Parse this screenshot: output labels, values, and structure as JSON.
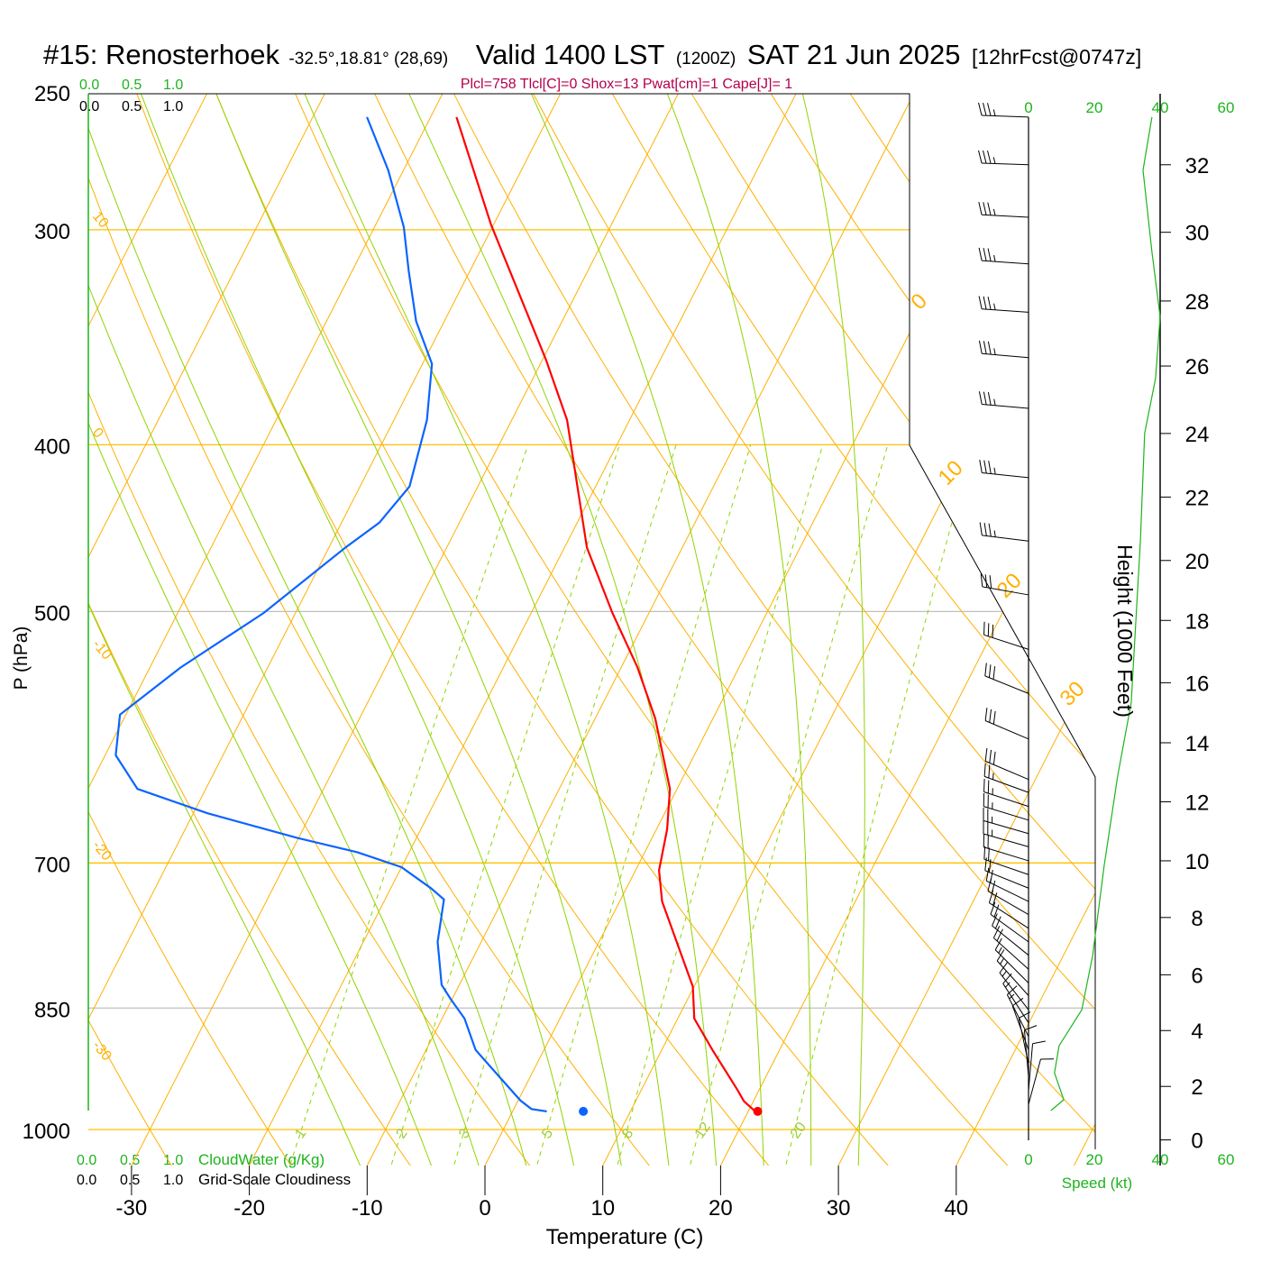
{
  "title": {
    "station": "#15: Renosterhoek",
    "coords": "-32.5°,18.81° (28,69)",
    "valid": "Valid 1400 LST",
    "utc": "(1200Z)",
    "date": "SAT 21 Jun 2025",
    "forecast": "[12hrFcst@0747z]"
  },
  "indices": "Plcl=758 Tlcl[C]=0 Shox=13 Pwat[cm]=1 Cape[J]= 1",
  "cloud_axes": {
    "ticks": [
      "0.0",
      "0.5",
      "1.0"
    ],
    "cloudwater_label": "CloudWater (g/Kg)",
    "cloudiness_label": "Grid-Scale Cloudiness"
  },
  "speed_axis": {
    "ticks": [
      "0",
      "20",
      "40",
      "60"
    ],
    "values": [
      0,
      20,
      40,
      60
    ],
    "label": "Speed (kt)"
  },
  "height_axis": {
    "label": "Height (1000 Feet)",
    "ticks": [
      {
        "kft": "0",
        "p": 1014
      },
      {
        "kft": "2",
        "p": 944
      },
      {
        "kft": "4",
        "p": 876
      },
      {
        "kft": "6",
        "p": 813
      },
      {
        "kft": "8",
        "p": 753
      },
      {
        "kft": "10",
        "p": 698
      },
      {
        "kft": "12",
        "p": 645
      },
      {
        "kft": "14",
        "p": 596
      },
      {
        "kft": "16",
        "p": 550
      },
      {
        "kft": "18",
        "p": 506
      },
      {
        "kft": "20",
        "p": 467
      },
      {
        "kft": "22",
        "p": 429
      },
      {
        "kft": "24",
        "p": 394
      },
      {
        "kft": "26",
        "p": 360
      },
      {
        "kft": "28",
        "p": 330
      },
      {
        "kft": "30",
        "p": 301
      },
      {
        "kft": "32",
        "p": 275
      }
    ]
  },
  "colors": {
    "temperature": "#ff0000",
    "dewpoint": "#0a64ff",
    "isotherm": "#ffb000",
    "dry_adiabat": "#ffb000",
    "moist_adiabat": "#8fd400",
    "mixing_ratio": "#8fd400",
    "speed": "#1db31d",
    "wind": "#000000",
    "gray_line": "#c0c0c0"
  },
  "chart_data": {
    "type": "line",
    "subtype": "skew-T log-P sounding",
    "xlabel": "Temperature (C)",
    "ylabel": "P (hPa)",
    "x_ticks": [
      "-30",
      "-20",
      "-10",
      "0",
      "10",
      "20",
      "30",
      "40"
    ],
    "x_tick_values": [
      -30,
      -20,
      -10,
      0,
      10,
      20,
      30,
      40
    ],
    "pressure_ticks": [
      {
        "label": "250",
        "p": 250,
        "line": "none"
      },
      {
        "label": "300",
        "p": 300,
        "line": "orange"
      },
      {
        "label": "400",
        "p": 400,
        "line": "orange"
      },
      {
        "label": "500",
        "p": 500,
        "line": "gray"
      },
      {
        "label": "700",
        "p": 700,
        "line": "orange"
      },
      {
        "label": "850",
        "p": 850,
        "line": "gray"
      },
      {
        "label": "1000",
        "p": 1000,
        "line": "orange"
      }
    ],
    "ylim_hpa": [
      1000,
      250
    ],
    "isotherm_labels": [
      {
        "label": "0",
        "t": 0
      },
      {
        "label": "10",
        "t": 10
      },
      {
        "label": "20",
        "t": 20
      },
      {
        "label": "30",
        "t": 30
      }
    ],
    "dry_adiabat_labels": [
      {
        "label": "10",
        "theta": 10
      },
      {
        "label": "0",
        "theta": 0
      },
      {
        "label": "-10",
        "theta": -10
      },
      {
        "label": "-20",
        "theta": -20
      },
      {
        "label": "-30",
        "theta": -30
      }
    ],
    "mixing_ratio_labels": [
      {
        "label": "1",
        "w": 1
      },
      {
        "label": "2",
        "w": 2
      },
      {
        "label": "3",
        "w": 3
      },
      {
        "label": "5",
        "w": 5
      },
      {
        "label": "8",
        "w": 8
      },
      {
        "label": "12",
        "w": 12
      },
      {
        "label": "20",
        "w": 20
      }
    ],
    "series": [
      {
        "name": "Temperature",
        "color": "#ff0000",
        "points": [
          [
            258,
            -47.8
          ],
          [
            298,
            -40.2
          ],
          [
            357,
            -29.7
          ],
          [
            387,
            -25.3
          ],
          [
            459,
            -18.1
          ],
          [
            501,
            -13.1
          ],
          [
            539,
            -8.6
          ],
          [
            577,
            -4.9
          ],
          [
            634,
            -0.6
          ],
          [
            669,
            0.9
          ],
          [
            707,
            2.0
          ],
          [
            737,
            3.6
          ],
          [
            826,
            9.9
          ],
          [
            862,
            11.4
          ],
          [
            899,
            14.3
          ],
          [
            949,
            18.2
          ],
          [
            963,
            19.2
          ],
          [
            976,
            20.6
          ]
        ]
      },
      {
        "name": "Dewpoint",
        "color": "#0a64ff",
        "points": [
          [
            258,
            -55.4
          ],
          [
            277,
            -51.3
          ],
          [
            299,
            -47.5
          ],
          [
            317,
            -45.2
          ],
          [
            339,
            -42.4
          ],
          [
            359,
            -39.2
          ],
          [
            387,
            -37.2
          ],
          [
            423,
            -35.8
          ],
          [
            444,
            -36.8
          ],
          [
            459,
            -38.6
          ],
          [
            501,
            -42.7
          ],
          [
            539,
            -47.4
          ],
          [
            574,
            -50.5
          ],
          [
            606,
            -49.1
          ],
          [
            634,
            -45.8
          ],
          [
            655,
            -38.8
          ],
          [
            677,
            -30.1
          ],
          [
            690,
            -24.4
          ],
          [
            704,
            -20.0
          ],
          [
            724,
            -16.6
          ],
          [
            735,
            -15.0
          ],
          [
            778,
            -13.7
          ],
          [
            824,
            -11.5
          ],
          [
            840,
            -10.1
          ],
          [
            862,
            -8.1
          ],
          [
            899,
            -5.8
          ],
          [
            929,
            -2.9
          ],
          [
            962,
            0.2
          ],
          [
            973,
            1.5
          ],
          [
            976,
            2.9
          ]
        ]
      }
    ],
    "surface_markers": [
      {
        "name": "surface-temperature",
        "p": 976,
        "t": 20.8,
        "color": "#ff0000"
      },
      {
        "name": "surface-dewpoint",
        "p": 976,
        "t": 6.0,
        "color": "#0a64ff"
      }
    ],
    "wind_speed_profile": [
      [
        975,
        6.8
      ],
      [
        961,
        10.7
      ],
      [
        927,
        7.9
      ],
      [
        894,
        9.3
      ],
      [
        852,
        16.2
      ],
      [
        792,
        19.5
      ],
      [
        702,
        23.0
      ],
      [
        623,
        27.1
      ],
      [
        565,
        31.2
      ],
      [
        455,
        34.0
      ],
      [
        394,
        35.3
      ],
      [
        366,
        38.6
      ],
      [
        337,
        40
      ],
      [
        309,
        37.5
      ],
      [
        277,
        34.8
      ],
      [
        258,
        37.5
      ]
    ],
    "wind_barbs": [
      [
        258,
        272,
        35
      ],
      [
        275,
        272,
        35
      ],
      [
        295,
        273,
        35
      ],
      [
        314,
        274,
        35
      ],
      [
        335,
        274,
        35
      ],
      [
        356,
        275,
        35
      ],
      [
        381,
        275,
        35
      ],
      [
        418,
        276,
        35
      ],
      [
        455,
        277,
        35
      ],
      [
        489,
        280,
        30
      ],
      [
        526,
        288,
        30
      ],
      [
        558,
        292,
        30
      ],
      [
        593,
        293,
        30
      ],
      [
        626,
        293,
        30
      ],
      [
        637,
        290,
        25
      ],
      [
        649,
        288,
        25
      ],
      [
        661,
        287,
        25
      ],
      [
        673,
        286,
        25
      ],
      [
        685,
        286,
        25
      ],
      [
        698,
        287,
        20
      ],
      [
        711,
        289,
        20
      ],
      [
        724,
        292,
        20
      ],
      [
        737,
        296,
        20
      ],
      [
        750,
        300,
        20
      ],
      [
        764,
        303,
        20
      ],
      [
        778,
        306,
        20
      ],
      [
        792,
        309,
        20
      ],
      [
        807,
        312,
        20
      ],
      [
        822,
        315,
        15
      ],
      [
        836,
        318,
        15
      ],
      [
        852,
        322,
        15
      ],
      [
        867,
        327,
        15
      ],
      [
        883,
        333,
        15
      ],
      [
        899,
        340,
        10
      ],
      [
        916,
        348,
        10
      ],
      [
        932,
        355,
        10
      ],
      [
        949,
        5,
        10
      ],
      [
        967,
        15,
        10
      ]
    ]
  }
}
